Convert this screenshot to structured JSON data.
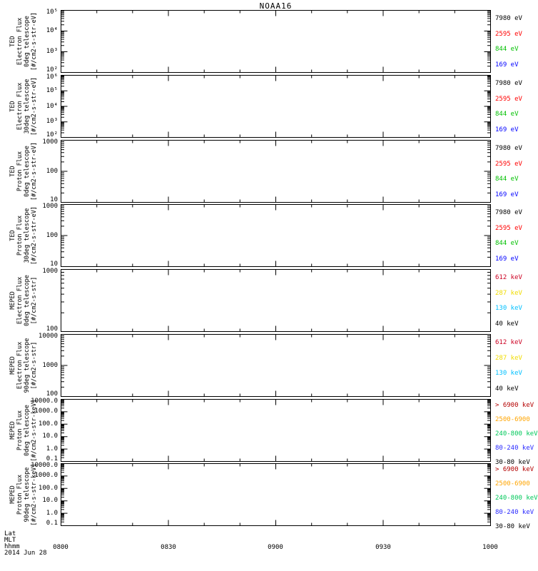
{
  "title": "NOAA16",
  "xaxis": {
    "tick_labels": [
      "0800",
      "0830",
      "0900",
      "0930",
      "1000"
    ],
    "minor_tick_minutes": 10,
    "major_tick_minutes": 30
  },
  "footer": {
    "lat_label": "Lat",
    "mlt_label": "MLT",
    "hhmm_label": "hhmm",
    "date": "2014 Jun 28"
  },
  "chart_data": [
    {
      "type": "line",
      "name": "TED Electron Flux 0deg telescope",
      "ylabel_lines": [
        "TED",
        "Electron Flux",
        "0deg telescope",
        "[#/cm2-s-str-eV]"
      ],
      "ytick_labels": [
        "10⁵",
        "10⁴",
        "10³",
        "10²"
      ],
      "decades": 3,
      "ylim": [
        100,
        100000
      ],
      "ylog": true,
      "x_range": [
        "0800",
        "1000"
      ],
      "series": [],
      "legend": [
        {
          "label": "7980 eV",
          "color": "#000000"
        },
        {
          "label": "2595 eV",
          "color": "#ff0000"
        },
        {
          "label": "844 eV",
          "color": "#00c000"
        },
        {
          "label": "169 eV",
          "color": "#0000ff"
        }
      ]
    },
    {
      "type": "line",
      "name": "TED Electron Flux 30deg telescope",
      "ylabel_lines": [
        "TED",
        "Electron Flux",
        "30deg telescope",
        "[#/cm2-s-str-eV]"
      ],
      "ytick_labels": [
        "10⁶",
        "10⁵",
        "10⁴",
        "10³",
        "10²"
      ],
      "decades": 4,
      "ylim": [
        100,
        1000000
      ],
      "ylog": true,
      "x_range": [
        "0800",
        "1000"
      ],
      "series": [],
      "legend": [
        {
          "label": "7980 eV",
          "color": "#000000"
        },
        {
          "label": "2595 eV",
          "color": "#ff0000"
        },
        {
          "label": "844 eV",
          "color": "#00c000"
        },
        {
          "label": "169 eV",
          "color": "#0000ff"
        }
      ]
    },
    {
      "type": "line",
      "name": "TED Proton Flux 0deg telescope",
      "ylabel_lines": [
        "TED",
        "Proton Flux",
        "0deg telescope",
        "[#/cm2-s-str-eV]"
      ],
      "ytick_labels": [
        "1000",
        "100",
        "10"
      ],
      "decades": 2,
      "ylim": [
        10,
        1000
      ],
      "ylog": true,
      "x_range": [
        "0800",
        "1000"
      ],
      "series": [],
      "legend": [
        {
          "label": "7980 eV",
          "color": "#000000"
        },
        {
          "label": "2595 eV",
          "color": "#ff0000"
        },
        {
          "label": "844 eV",
          "color": "#00c000"
        },
        {
          "label": "169 eV",
          "color": "#0000ff"
        }
      ]
    },
    {
      "type": "line",
      "name": "TED Proton Flux 30deg telescope",
      "ylabel_lines": [
        "TED",
        "Proton Flux",
        "30deg telescope",
        "[#/cm2-s-str-eV]"
      ],
      "ytick_labels": [
        "1000",
        "100",
        "10"
      ],
      "decades": 2,
      "ylim": [
        10,
        1000
      ],
      "ylog": true,
      "x_range": [
        "0800",
        "1000"
      ],
      "series": [],
      "legend": [
        {
          "label": "7980 eV",
          "color": "#000000"
        },
        {
          "label": "2595 eV",
          "color": "#ff0000"
        },
        {
          "label": "844 eV",
          "color": "#00c000"
        },
        {
          "label": "169 eV",
          "color": "#0000ff"
        }
      ]
    },
    {
      "type": "line",
      "name": "MEPED Electron Flux 0deg telescope",
      "ylabel_lines": [
        "MEPED",
        "Electron Flux",
        "0deg telescope",
        "[#/cm2-s-str]"
      ],
      "ytick_labels": [
        "1000",
        "100"
      ],
      "decades": 1,
      "ylim": [
        100,
        1000
      ],
      "ylog": true,
      "x_range": [
        "0800",
        "1000"
      ],
      "series": [],
      "legend": [
        {
          "label": "612 keV",
          "color": "#cc0022"
        },
        {
          "label": "287 keV",
          "color": "#f0dc00"
        },
        {
          "label": "130 keV",
          "color": "#00c0ff"
        },
        {
          "label": "40 keV",
          "color": "#000000"
        }
      ]
    },
    {
      "type": "line",
      "name": "MEPED Electron Flux 90deg telescope",
      "ylabel_lines": [
        "MEPED",
        "Electron Flux",
        "90deg telescope",
        "[#/cm2-s-str]"
      ],
      "ytick_labels": [
        "10000",
        "1000",
        "100"
      ],
      "decades": 2,
      "ylim": [
        100,
        10000
      ],
      "ylog": true,
      "x_range": [
        "0800",
        "1000"
      ],
      "series": [],
      "legend": [
        {
          "label": "612 keV",
          "color": "#cc0022"
        },
        {
          "label": "287 keV",
          "color": "#f0dc00"
        },
        {
          "label": "130 keV",
          "color": "#00c0ff"
        },
        {
          "label": "40 keV",
          "color": "#000000"
        }
      ]
    },
    {
      "type": "line",
      "name": "MEPED Proton Flux 0deg telescope",
      "ylabel_lines": [
        "MEPED",
        "Proton Flux",
        "0deg telescope",
        "[#/cm2-s-str-keV]"
      ],
      "ytick_labels": [
        "10000.0",
        "1000.0",
        "100.0",
        "10.0",
        "1.0",
        "0.1"
      ],
      "decades": 5,
      "ylim": [
        0.1,
        10000
      ],
      "ylog": true,
      "x_range": [
        "0800",
        "1000"
      ],
      "series": [],
      "legend": [
        {
          "label": "> 6900 keV",
          "color": "#b40000"
        },
        {
          "label": "2500-6900",
          "color": "#ffa500"
        },
        {
          "label": "240-800 keV",
          "color": "#00c85a"
        },
        {
          "label": "80-240 keV",
          "color": "#2828ff"
        },
        {
          "label": "30-80 keV",
          "color": "#000000"
        }
      ]
    },
    {
      "type": "line",
      "name": "MEPED Proton Flux 90deg telescope",
      "ylabel_lines": [
        "MEPED",
        "Proton Flux",
        "90deg telescope",
        "[#/cm2-s-str-keV]"
      ],
      "ytick_labels": [
        "10000.0",
        "1000.0",
        "100.0",
        "10.0",
        "1.0",
        "0.1"
      ],
      "decades": 5,
      "ylim": [
        0.1,
        10000
      ],
      "ylog": true,
      "x_range": [
        "0800",
        "1000"
      ],
      "series": [],
      "legend": [
        {
          "label": "> 6900 keV",
          "color": "#b40000"
        },
        {
          "label": "2500-6900",
          "color": "#ffa500"
        },
        {
          "label": "240-800 keV",
          "color": "#00c85a"
        },
        {
          "label": "80-240 keV",
          "color": "#2828ff"
        },
        {
          "label": "30-80 keV",
          "color": "#000000"
        }
      ]
    }
  ]
}
